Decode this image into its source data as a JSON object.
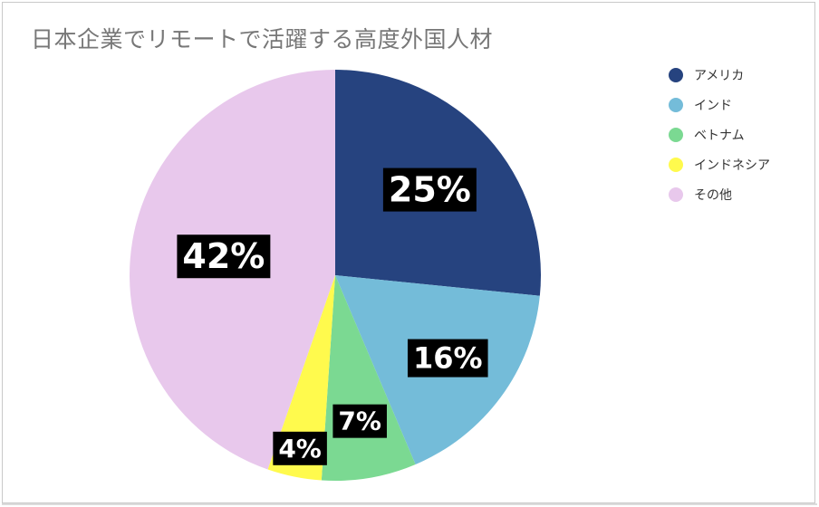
{
  "chart_data": {
    "type": "pie",
    "title": "日本企業でリモートで活躍する高度外国人材",
    "categories": [
      "アメリカ",
      "インド",
      "ベトナム",
      "インドネシア",
      "その他"
    ],
    "values": [
      25,
      16,
      7,
      4,
      42
    ],
    "labels": [
      "25%",
      "16%",
      "7%",
      "4%",
      "42%"
    ],
    "colors": [
      "#26437f",
      "#74bcd9",
      "#7bd992",
      "#fffa4d",
      "#e8c8ec"
    ],
    "unit": "%",
    "legend_position": "right",
    "start_angle": "top, clockwise"
  }
}
